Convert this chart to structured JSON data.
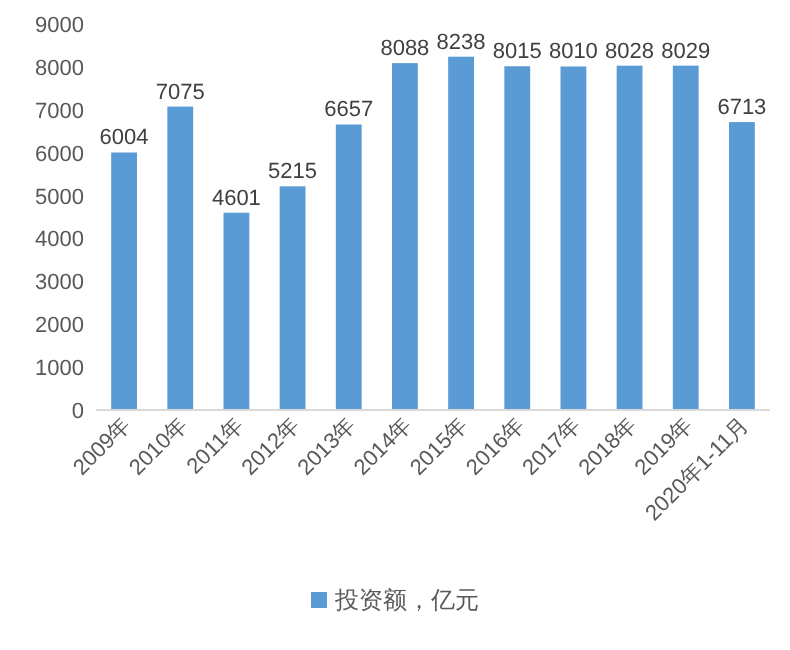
{
  "chart_data": {
    "type": "bar",
    "categories": [
      "2009年",
      "2010年",
      "2011年",
      "2012年",
      "2013年",
      "2014年",
      "2015年",
      "2016年",
      "2017年",
      "2018年",
      "2019年",
      "2020年1-11月"
    ],
    "series": [
      {
        "name": "投资额，亿元",
        "color": "#5b9bd5",
        "values": [
          6004,
          7075,
          4601,
          5215,
          6657,
          8088,
          8238,
          8015,
          8010,
          8028,
          8029,
          6713
        ]
      }
    ],
    "ylim": [
      0,
      9000
    ],
    "yticks": [
      0,
      1000,
      2000,
      3000,
      4000,
      5000,
      6000,
      7000,
      8000,
      9000
    ],
    "data_labels": true,
    "legend": "bottom",
    "grid": false
  }
}
